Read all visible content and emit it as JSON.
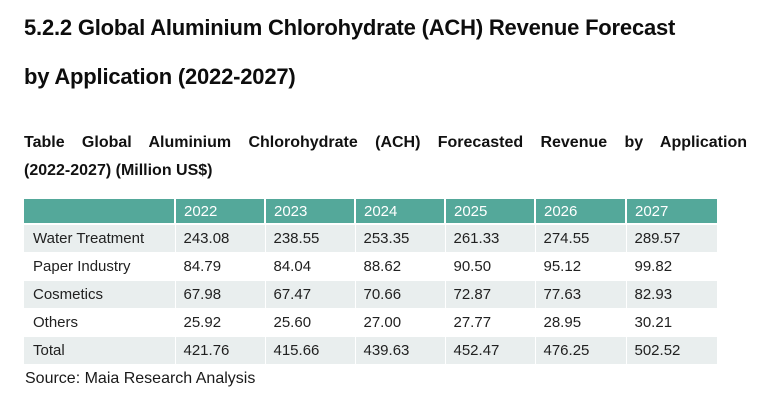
{
  "page": {
    "title": "5.2.2 Global Aluminium Chlorohydrate (ACH) Revenue Forecast by Application (2022-2027)",
    "title_lines": [
      "5.2.2 Global Aluminium Chlorohydrate (ACH) Revenue Forecast",
      "by Application (2022-2027)"
    ],
    "subtitle_lines": [
      "Table Global Aluminium Chlorohydrate (ACH) Forecasted Revenue by Application",
      "(2022-2027) (Million US$)"
    ],
    "source": "Source: Maia Research Analysis"
  },
  "table": {
    "columns": [
      "",
      "2022",
      "2023",
      "2024",
      "2025",
      "2026",
      "2027"
    ],
    "rows": [
      {
        "label": "Water Treatment",
        "values": [
          "243.08",
          "238.55",
          "253.35",
          "261.33",
          "274.55",
          "289.57"
        ]
      },
      {
        "label": "Paper Industry",
        "values": [
          "84.79",
          "84.04",
          "88.62",
          "90.50",
          "95.12",
          "99.82"
        ]
      },
      {
        "label": "Cosmetics",
        "values": [
          "67.98",
          "67.47",
          "70.66",
          "72.87",
          "77.63",
          "82.93"
        ]
      },
      {
        "label": "Others",
        "values": [
          "25.92",
          "25.60",
          "27.00",
          "27.77",
          "28.95",
          "30.21"
        ]
      },
      {
        "label": "Total",
        "values": [
          "421.76",
          "415.66",
          "439.63",
          "452.47",
          "476.25",
          "502.52"
        ]
      }
    ]
  },
  "chart_data": {
    "type": "table",
    "title": "Global Aluminium Chlorohydrate (ACH) Forecasted Revenue by Application (2022-2027) (Million US$)",
    "categories": [
      "2022",
      "2023",
      "2024",
      "2025",
      "2026",
      "2027"
    ],
    "series": [
      {
        "name": "Water Treatment",
        "values": [
          243.08,
          238.55,
          253.35,
          261.33,
          274.55,
          289.57
        ]
      },
      {
        "name": "Paper Industry",
        "values": [
          84.79,
          84.04,
          88.62,
          90.5,
          95.12,
          99.82
        ]
      },
      {
        "name": "Cosmetics",
        "values": [
          67.98,
          67.47,
          70.66,
          72.87,
          77.63,
          82.93
        ]
      },
      {
        "name": "Others",
        "values": [
          25.92,
          25.6,
          27.0,
          27.77,
          28.95,
          30.21
        ]
      },
      {
        "name": "Total",
        "values": [
          421.76,
          415.66,
          439.63,
          452.47,
          476.25,
          502.52
        ]
      }
    ]
  },
  "colors": {
    "header_bg": "#54A89A",
    "band_bg": "#E9EEEE",
    "header_text": "#FFFFFF",
    "body_text": "#212121"
  }
}
